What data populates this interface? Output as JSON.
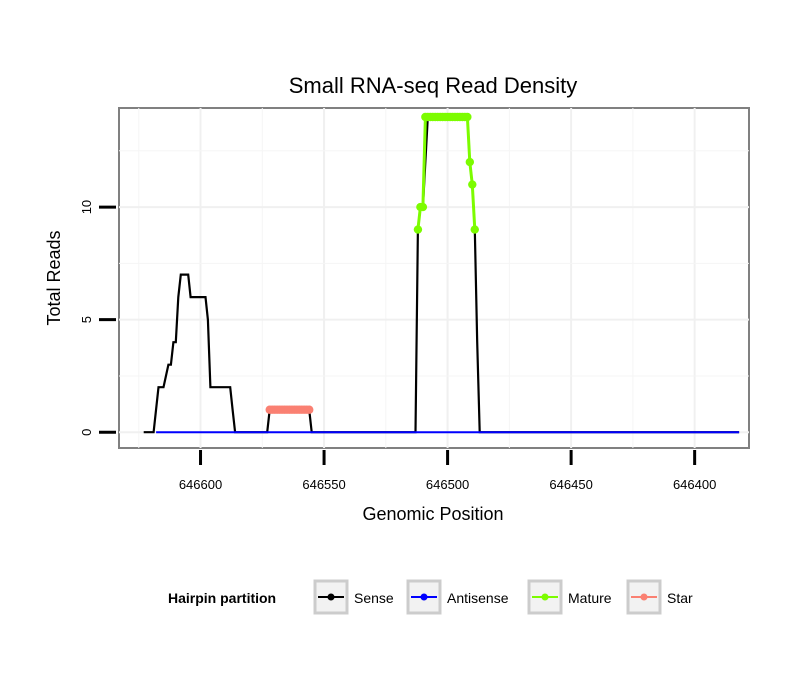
{
  "chart_data": {
    "type": "line",
    "title": "Small RNA-seq Read Density",
    "xlabel": "Genomic Position",
    "ylabel": "Total Reads",
    "x_reversed": true,
    "xlim": [
      646633,
      646378
    ],
    "ylim": [
      -0.7,
      14.4
    ],
    "x_ticks": [
      646600,
      646550,
      646500,
      646450,
      646400
    ],
    "x_tick_labels": [
      "646600",
      "646550",
      "646500",
      "646450",
      "646400"
    ],
    "y_ticks": [
      0,
      5,
      10
    ],
    "y_tick_labels": [
      "0",
      "5",
      "10"
    ],
    "grid": true,
    "legend": {
      "title": "Hairpin partition",
      "position": "bottom",
      "entries": [
        {
          "label": "Sense",
          "color": "#000000"
        },
        {
          "label": "Antisense",
          "color": "#0000ff"
        },
        {
          "label": "Mature",
          "color": "#7cfc00"
        },
        {
          "label": "Star",
          "color": "#fa8072"
        }
      ]
    },
    "series": [
      {
        "name": "Sense",
        "color": "#000000",
        "points": [
          [
            646623,
            0
          ],
          [
            646619,
            0
          ],
          [
            646617,
            2
          ],
          [
            646615,
            2
          ],
          [
            646613,
            3
          ],
          [
            646612,
            3
          ],
          [
            646611,
            4
          ],
          [
            646610,
            4
          ],
          [
            646609,
            6
          ],
          [
            646608,
            7
          ],
          [
            646606,
            7
          ],
          [
            646605,
            7
          ],
          [
            646604,
            6
          ],
          [
            646600,
            6
          ],
          [
            646598,
            6
          ],
          [
            646597,
            5
          ],
          [
            646596,
            2
          ],
          [
            646592,
            2
          ],
          [
            646588,
            2
          ],
          [
            646587,
            1
          ],
          [
            646586,
            0
          ],
          [
            646573,
            0
          ],
          [
            646572,
            1
          ],
          [
            646556,
            1
          ],
          [
            646555,
            0
          ],
          [
            646513,
            0
          ],
          [
            646512,
            9
          ],
          [
            646511,
            10
          ],
          [
            646510,
            10
          ],
          [
            646508,
            14
          ],
          [
            646492,
            14
          ],
          [
            646491,
            12
          ],
          [
            646490,
            11
          ],
          [
            646489,
            9
          ],
          [
            646488,
            4
          ],
          [
            646487,
            0
          ],
          [
            646382,
            0
          ]
        ]
      },
      {
        "name": "Antisense",
        "color": "#0000ff",
        "points": [
          [
            646618,
            0
          ],
          [
            646382,
            0
          ]
        ]
      },
      {
        "name": "Mature",
        "color": "#7cfc00",
        "points": [
          [
            646512,
            9
          ],
          [
            646511,
            10
          ],
          [
            646510,
            10
          ],
          [
            646509,
            14
          ],
          [
            646508,
            14
          ],
          [
            646507,
            14
          ],
          [
            646506,
            14
          ],
          [
            646505,
            14
          ],
          [
            646504,
            14
          ],
          [
            646503,
            14
          ],
          [
            646502,
            14
          ],
          [
            646501,
            14
          ],
          [
            646500,
            14
          ],
          [
            646499,
            14
          ],
          [
            646498,
            14
          ],
          [
            646497,
            14
          ],
          [
            646496,
            14
          ],
          [
            646495,
            14
          ],
          [
            646494,
            14
          ],
          [
            646493,
            14
          ],
          [
            646492,
            14
          ],
          [
            646491,
            12
          ],
          [
            646490,
            11
          ],
          [
            646489,
            9
          ]
        ]
      },
      {
        "name": "Star",
        "color": "#fa8072",
        "points": [
          [
            646572,
            1
          ],
          [
            646571,
            1
          ],
          [
            646570,
            1
          ],
          [
            646569,
            1
          ],
          [
            646568,
            1
          ],
          [
            646567,
            1
          ],
          [
            646566,
            1
          ],
          [
            646565,
            1
          ],
          [
            646564,
            1
          ],
          [
            646563,
            1
          ],
          [
            646562,
            1
          ],
          [
            646561,
            1
          ],
          [
            646560,
            1
          ],
          [
            646559,
            1
          ],
          [
            646558,
            1
          ],
          [
            646557,
            1
          ],
          [
            646556,
            1
          ]
        ]
      }
    ]
  }
}
